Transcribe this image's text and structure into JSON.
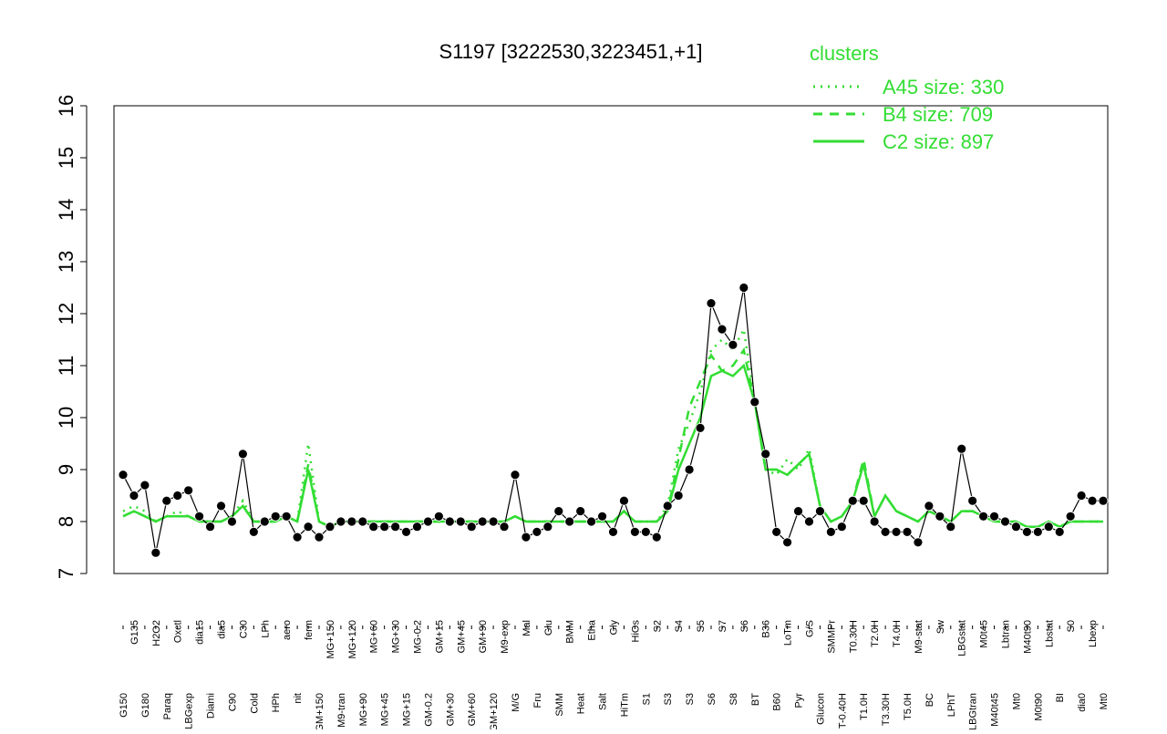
{
  "chart_data": {
    "type": "line",
    "title": "S1197 [3222530,3223451,+1]",
    "legend_title": "clusters",
    "legend_position": "top-right",
    "categories": [
      "G150",
      "G135",
      "G180",
      "H2O2",
      "Paraq",
      "Oxctl",
      "LBGexp",
      "dia15",
      "Diami",
      "dia5",
      "C90",
      "C30",
      "Cold",
      "LPh",
      "HPh",
      "aero",
      "nit",
      "ferm",
      "GM+150",
      "MG+150",
      "M9-tran",
      "MG+120",
      "MG+90",
      "MG+60",
      "MG+45",
      "MG+30",
      "MG+15",
      "MG-0.2",
      "GM-0.2",
      "GM+15",
      "GM+30",
      "GM+45",
      "GM+60",
      "GM+90",
      "GM+120",
      "M9-exp",
      "M/G",
      "Mal",
      "Fru",
      "Glu",
      "SMM",
      "BMM",
      "Heat",
      "Etha",
      "Salt",
      "Gly",
      "HiTm",
      "HiOs",
      "S1",
      "S2",
      "S3",
      "S4",
      "S3",
      "S5",
      "S6",
      "S7",
      "S8",
      "S6",
      "BT",
      "B36",
      "B60",
      "LoTm",
      "Pyr",
      "G/S",
      "Glucon",
      "SMMPr",
      "T-0.40H",
      "T0.30H",
      "T1.0H",
      "T2.0H",
      "T3.30H",
      "T4.0H",
      "T5.0H",
      "M9-stat",
      "BC",
      "Sw",
      "LPhT",
      "LBGstat",
      "LBGtran",
      "M0t45",
      "M40t45",
      "Lbtran",
      "Mt0",
      "M40t90",
      "M0t90",
      "Lbstat",
      "BI",
      "S0",
      "dia0",
      "Lbexp",
      "Mt0"
    ],
    "values": [
      8.9,
      8.5,
      8.7,
      7.4,
      8.4,
      8.5,
      8.6,
      8.1,
      7.9,
      8.3,
      8.0,
      9.3,
      7.8,
      8.0,
      8.1,
      8.1,
      7.7,
      7.9,
      7.7,
      7.9,
      8.0,
      8.0,
      8.0,
      7.9,
      7.9,
      7.9,
      7.8,
      7.9,
      8.0,
      8.1,
      8.0,
      8.0,
      7.9,
      8.0,
      8.0,
      7.9,
      8.9,
      7.7,
      7.8,
      7.9,
      8.2,
      8.0,
      8.2,
      8.0,
      8.1,
      7.8,
      8.4,
      7.8,
      7.8,
      7.7,
      8.3,
      8.5,
      9.0,
      9.8,
      12.2,
      11.7,
      11.4,
      12.5,
      10.3,
      9.3,
      7.8,
      7.6,
      8.2,
      8.0,
      8.2,
      7.8,
      7.9,
      8.4,
      8.4,
      8.0,
      7.8,
      7.8,
      7.8,
      7.6,
      8.3,
      8.1,
      7.9,
      9.4,
      8.4,
      8.1,
      8.1,
      8.0,
      7.9,
      7.8,
      7.8,
      7.9,
      7.8,
      8.1,
      8.5,
      8.4,
      8.4
    ],
    "color": "#000000",
    "series": [
      {
        "name": "A45 size: 330",
        "color": "#33dd33",
        "dash": "dotted",
        "values": [
          8.2,
          8.3,
          8.2,
          8.0,
          8.1,
          8.2,
          8.1,
          8.0,
          8.0,
          8.0,
          8.1,
          8.4,
          8.0,
          8.0,
          8.0,
          8.1,
          8.0,
          9.5,
          8.0,
          7.9,
          8.0,
          8.0,
          8.0,
          8.0,
          8.0,
          8.0,
          8.0,
          8.0,
          8.0,
          8.0,
          8.0,
          8.0,
          8.0,
          8.0,
          8.0,
          8.0,
          8.1,
          8.0,
          8.0,
          8.0,
          8.0,
          8.0,
          8.0,
          8.0,
          8.0,
          8.0,
          8.2,
          8.0,
          8.0,
          8.0,
          8.3,
          9.4,
          9.9,
          10.5,
          11.3,
          11.5,
          11.3,
          11.7,
          10.3,
          9.0,
          8.9,
          9.2,
          9.0,
          9.4,
          8.3,
          8.0,
          8.1,
          8.4,
          9.1,
          8.1,
          8.5,
          8.2,
          8.1,
          8.0,
          8.2,
          8.1,
          8.0,
          8.2,
          8.2,
          8.1,
          8.0,
          8.0,
          8.0,
          7.9,
          7.9,
          8.0,
          7.9,
          8.0,
          8.0,
          8.0,
          8.0
        ]
      },
      {
        "name": "B4 size: 709",
        "color": "#33dd33",
        "dash": "dashed",
        "values": [
          8.1,
          8.2,
          8.1,
          8.0,
          8.1,
          8.1,
          8.1,
          8.0,
          8.0,
          8.0,
          8.1,
          8.3,
          8.0,
          8.0,
          8.0,
          8.1,
          8.0,
          9.1,
          8.0,
          7.9,
          8.0,
          8.0,
          8.0,
          8.0,
          8.0,
          8.0,
          8.0,
          8.0,
          8.0,
          8.0,
          8.0,
          8.0,
          8.0,
          8.0,
          8.0,
          8.0,
          8.1,
          8.0,
          8.0,
          8.0,
          8.0,
          8.0,
          8.0,
          8.0,
          8.0,
          8.0,
          8.2,
          8.0,
          8.0,
          8.0,
          8.2,
          9.2,
          10.2,
          10.7,
          11.2,
          10.9,
          11.0,
          11.3,
          10.3,
          9.0,
          9.0,
          8.9,
          9.1,
          9.3,
          8.3,
          8.0,
          8.1,
          8.4,
          9.2,
          8.1,
          8.5,
          8.2,
          8.1,
          8.0,
          8.2,
          8.1,
          8.0,
          8.2,
          8.2,
          8.1,
          8.0,
          8.0,
          8.0,
          7.9,
          7.9,
          8.0,
          7.9,
          8.0,
          8.0,
          8.0,
          8.0
        ]
      },
      {
        "name": "C2 size: 897",
        "color": "#33dd33",
        "dash": "solid",
        "values": [
          8.1,
          8.2,
          8.1,
          8.0,
          8.1,
          8.1,
          8.1,
          8.0,
          8.0,
          8.0,
          8.1,
          8.3,
          8.0,
          8.0,
          8.0,
          8.1,
          8.0,
          9.0,
          8.0,
          7.9,
          8.0,
          8.0,
          8.0,
          8.0,
          8.0,
          8.0,
          8.0,
          8.0,
          8.0,
          8.0,
          8.0,
          8.0,
          8.0,
          8.0,
          8.0,
          8.0,
          8.1,
          8.0,
          8.0,
          8.0,
          8.0,
          8.0,
          8.0,
          8.0,
          8.0,
          8.0,
          8.2,
          8.0,
          8.0,
          8.0,
          8.2,
          9.0,
          9.5,
          10.0,
          10.8,
          10.9,
          10.8,
          11.0,
          10.3,
          9.0,
          9.0,
          8.9,
          9.1,
          9.3,
          8.3,
          8.0,
          8.1,
          8.4,
          9.1,
          8.1,
          8.5,
          8.2,
          8.1,
          8.0,
          8.2,
          8.1,
          8.0,
          8.2,
          8.2,
          8.1,
          8.0,
          8.0,
          8.0,
          7.9,
          7.9,
          8.0,
          7.9,
          8.0,
          8.0,
          8.0,
          8.0
        ]
      }
    ],
    "ylim": [
      7,
      16
    ],
    "yticks": [
      7,
      8,
      9,
      10,
      11,
      12,
      13,
      14,
      15,
      16
    ]
  }
}
